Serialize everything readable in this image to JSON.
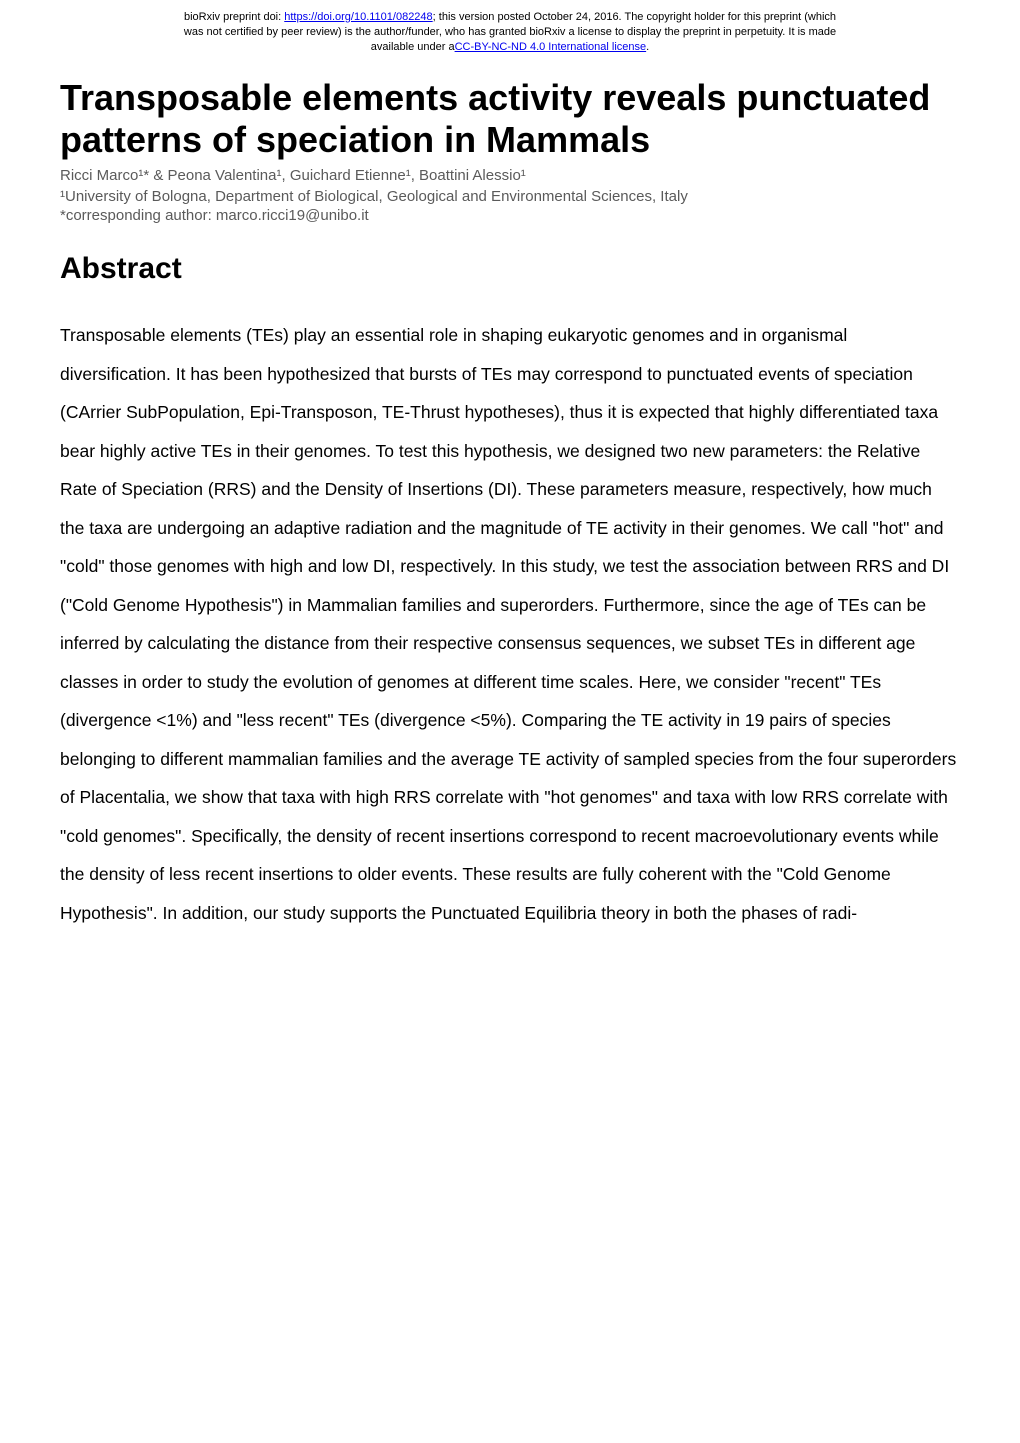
{
  "header": {
    "line1_pre": "bioRxiv preprint doi: ",
    "doi_url": "https://doi.org/10.1101/082248",
    "line1_post": "; this version posted October 24, 2016. The copyright holder for this preprint (which",
    "line2": "was not certified by peer review) is the author/funder, who has granted bioRxiv a license to display the preprint in perpetuity. It is made",
    "line3_pre": "available under a",
    "license_text": "CC-BY-NC-ND 4.0 International license",
    "line3_post": "."
  },
  "title": "Transposable elements activity reveals punctuated patterns of speciation in Mammals",
  "authors": "Ricci Marco¹* & Peona Valentina¹, Guichard Etienne¹, Boattini Alessio¹",
  "affiliation": "¹University of Bologna, Department of Biological, Geological and Environmental Sciences, Italy",
  "corresponding": "*corresponding author: marco.ricci19@unibo.it",
  "abstract_heading": "Abstract",
  "abstract_body": "Transposable elements (TEs) play an essential role in shaping eukaryotic genomes and in organismal diversification. It has been hypothesized that bursts of TEs may correspond to punctuated events of speciation (CArrier SubPopulation, Epi-Transposon, TE-Thrust hypotheses), thus it is expected that highly differentiated taxa bear highly active TEs in their genomes. To test this hypothesis, we designed two new parameters: the Relative Rate of Speciation (RRS) and the Density of Insertions (DI). These parameters measure, respectively, how much the taxa are undergoing an adaptive radiation and the magnitude of TE activity in their genomes. We call \"hot\" and \"cold\" those genomes with high and low DI, respectively. In this study, we test the association between RRS and DI (\"Cold Genome Hypothesis\") in Mammalian families and superorders. Furthermore, since the age of TEs can be inferred by calculating the distance from their respective consensus sequences, we subset TEs in different age classes in order to study the evolution of genomes at different time scales. Here, we consider \"recent\" TEs (divergence <1%) and \"less recent\" TEs (divergence <5%). Comparing the TE activity in 19 pairs of species belonging to different mammalian families and the average TE activity of sampled species from the four superorders of Placentalia, we show that taxa with high RRS correlate with \"hot genomes\" and taxa with low RRS correlate with \"cold genomes\". Specifically, the density of recent insertions correspond to recent macroevolutionary events while the density of less recent insertions to older events. These results are fully coherent with the \"Cold Genome Hypothesis\". In addition, our study supports the Punctuated Equilibria theory in both the phases of radi-"
}
